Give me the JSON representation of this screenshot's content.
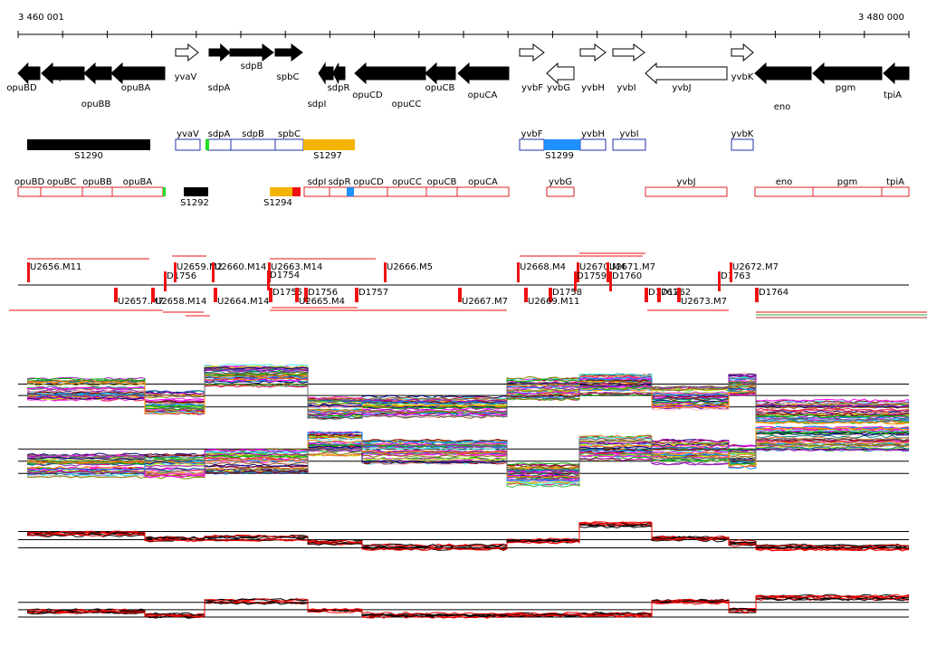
{
  "axis": {
    "left_label": "3 460 001",
    "right_label": "3 480 000"
  },
  "genes_forward": [
    {
      "name": "yvaV",
      "filled": false
    },
    {
      "name": "sdpA",
      "filled": true
    },
    {
      "name": "sdpB",
      "filled": true
    },
    {
      "name": "spbC",
      "filled": true
    },
    {
      "name": "yvbF",
      "filled": false
    },
    {
      "name": "yvbH",
      "filled": false
    },
    {
      "name": "yvbI",
      "filled": false
    },
    {
      "name": "yvbK",
      "filled": false
    }
  ],
  "genes_reverse": [
    {
      "name": "opuBD",
      "filled": true
    },
    {
      "name": "opuBC",
      "filled": true
    },
    {
      "name": "opuBB",
      "filled": true
    },
    {
      "name": "opuBA",
      "filled": true
    },
    {
      "name": "sdpI",
      "filled": true
    },
    {
      "name": "sdpR",
      "filled": true
    },
    {
      "name": "opuCD",
      "filled": true
    },
    {
      "name": "opuCC",
      "filled": true
    },
    {
      "name": "opuCB",
      "filled": true
    },
    {
      "name": "opuCA",
      "filled": true
    },
    {
      "name": "yvbG",
      "filled": false
    },
    {
      "name": "yvbJ",
      "filled": false
    },
    {
      "name": "eno",
      "filled": true
    },
    {
      "name": "pgm",
      "filled": true
    },
    {
      "name": "tpiA",
      "filled": true
    }
  ],
  "segments_forward": [
    "S1290",
    "S1297",
    "S1299"
  ],
  "segments_reverse": [
    "S1292",
    "S1294"
  ],
  "annot_boxes_top": [
    "yvaV",
    "sdpA",
    "sdpB",
    "spbC",
    "yvbF",
    "yvbH",
    "yvbI",
    "yvbK"
  ],
  "annot_boxes_bottom": [
    "opuBD",
    "opuBC",
    "opuBB",
    "opuBA",
    "sdpI",
    "sdpR",
    "opuCD",
    "opuCC",
    "opuCB",
    "opuCA",
    "yvbG",
    "yvbJ",
    "eno",
    "pgm",
    "tpiA"
  ],
  "tu_labels_top": [
    "U2656.M11",
    "D1756",
    "U2659.M2",
    "U2660.M14",
    "D1754",
    "U2663.M14",
    "U2666.M5",
    "U2668.M4",
    "U2670.M4",
    "D1759",
    "U2671.M7",
    "D1760",
    "D1763",
    "U2672.M7"
  ],
  "tu_labels_bottom": [
    "U2657.M7",
    "U2658.M14",
    "U2664.M14",
    "D1755",
    "D1756",
    "D1757",
    "U2665.M4",
    "U2667.M7",
    "D1758",
    "U2669.M11",
    "D1761",
    "D1762",
    "U2673.M7",
    "D1764"
  ],
  "colors": {
    "forward_box": "#2233aa",
    "reverse_box": "#dd2222",
    "orange": "#f5b400",
    "blue": "#1e90ff",
    "green": "#22dd22",
    "red": "#ee1111"
  },
  "expression_panels": [
    "panel-1",
    "panel-2",
    "panel-3",
    "panel-4"
  ]
}
